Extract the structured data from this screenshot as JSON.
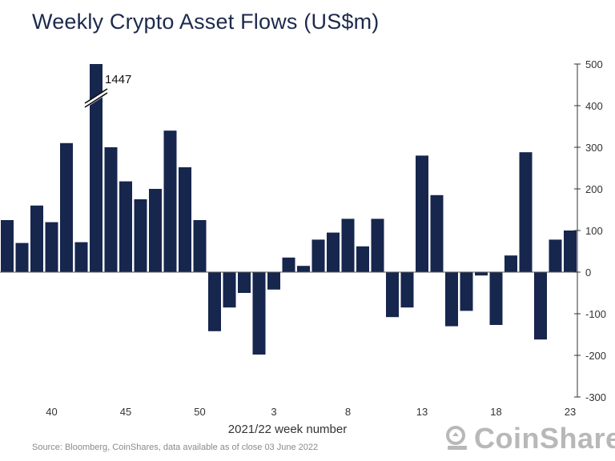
{
  "title": "Weekly Crypto Asset Flows (US$m)",
  "source": "Source: Bloomberg, CoinShares, data available as of close 03 June 2022",
  "brand": {
    "name": "CoinShares",
    "icon": "coinshares-logo-icon"
  },
  "colors": {
    "bar": "#16264d",
    "axis": "#333333",
    "title": "#1c2a4d"
  },
  "chart_data": {
    "type": "bar",
    "title": "Weekly Crypto Asset Flows (US$m)",
    "xlabel": "2021/22 week number",
    "ylabel": "",
    "ylim": [
      -300,
      500
    ],
    "yticks": [
      500,
      400,
      300,
      200,
      100,
      0,
      -100,
      -200,
      -300
    ],
    "y_axis_side": "right",
    "categories": [
      "37",
      "38",
      "39",
      "40",
      "41",
      "42",
      "43",
      "44",
      "45",
      "46",
      "47",
      "48",
      "49",
      "50",
      "51",
      "52",
      "1",
      "2",
      "3",
      "4",
      "5",
      "6",
      "7",
      "8",
      "9",
      "10",
      "11",
      "12",
      "13",
      "14",
      "15",
      "16",
      "17",
      "18",
      "19",
      "20",
      "21",
      "22",
      "23"
    ],
    "xtick_labels": [
      "40",
      "45",
      "50",
      "3",
      "8",
      "13",
      "18",
      "23"
    ],
    "values": [
      125,
      70,
      160,
      120,
      310,
      72,
      1447,
      300,
      218,
      175,
      200,
      340,
      252,
      125,
      -142,
      -85,
      -50,
      -198,
      -42,
      35,
      15,
      78,
      95,
      128,
      62,
      128,
      -108,
      -85,
      280,
      185,
      -130,
      -93,
      -8,
      -127,
      40,
      288,
      -162,
      78,
      100
    ],
    "break_annotation": {
      "category": "43",
      "label": "1447"
    },
    "grid": false,
    "legend": "none"
  }
}
